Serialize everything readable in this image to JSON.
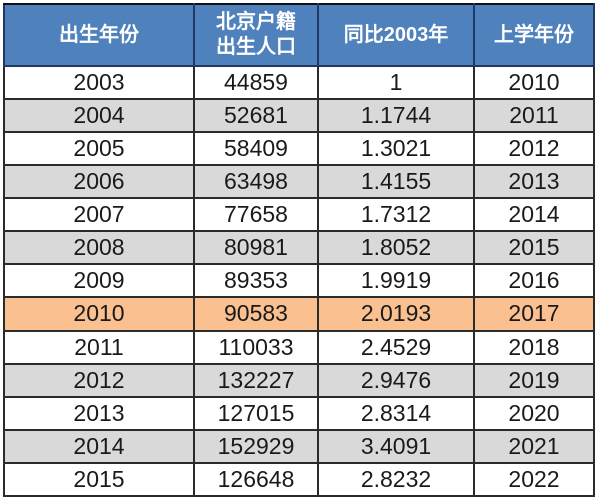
{
  "colors": {
    "header_bg": "#4F81BD",
    "header_text": "#FFFFFF",
    "header_divider": "#1F3864",
    "grid_border": "#2B2B2B",
    "row_white": "#FFFFFF",
    "row_gray": "#D9D9D9",
    "row_highlight": "#FAC090",
    "cell_text": "#1A1A1A"
  },
  "table": {
    "header": {
      "col1": "出生年份",
      "col2_line1": "北京户籍",
      "col2_line2": "出生人口",
      "col3": "同比2003年",
      "col4": "上学年份"
    },
    "rows": [
      {
        "birth_year": "2003",
        "births": "44859",
        "ratio": "1",
        "school_year": "2010",
        "highlight": false
      },
      {
        "birth_year": "2004",
        "births": "52681",
        "ratio": "1.1744",
        "school_year": "2011",
        "highlight": false
      },
      {
        "birth_year": "2005",
        "births": "58409",
        "ratio": "1.3021",
        "school_year": "2012",
        "highlight": false
      },
      {
        "birth_year": "2006",
        "births": "63498",
        "ratio": "1.4155",
        "school_year": "2013",
        "highlight": false
      },
      {
        "birth_year": "2007",
        "births": "77658",
        "ratio": "1.7312",
        "school_year": "2014",
        "highlight": false
      },
      {
        "birth_year": "2008",
        "births": "80981",
        "ratio": "1.8052",
        "school_year": "2015",
        "highlight": false
      },
      {
        "birth_year": "2009",
        "births": "89353",
        "ratio": "1.9919",
        "school_year": "2016",
        "highlight": false
      },
      {
        "birth_year": "2010",
        "births": "90583",
        "ratio": "2.0193",
        "school_year": "2017",
        "highlight": true
      },
      {
        "birth_year": "2011",
        "births": "110033",
        "ratio": "2.4529",
        "school_year": "2018",
        "highlight": false
      },
      {
        "birth_year": "2012",
        "births": "132227",
        "ratio": "2.9476",
        "school_year": "2019",
        "highlight": false
      },
      {
        "birth_year": "2013",
        "births": "127015",
        "ratio": "2.8314",
        "school_year": "2020",
        "highlight": false
      },
      {
        "birth_year": "2014",
        "births": "152929",
        "ratio": "3.4091",
        "school_year": "2021",
        "highlight": false
      },
      {
        "birth_year": "2015",
        "births": "126648",
        "ratio": "2.8232",
        "school_year": "2022",
        "highlight": false
      }
    ]
  },
  "chart_data": {
    "type": "table",
    "columns": [
      "出生年份",
      "北京户籍出生人口",
      "同比2003年",
      "上学年份"
    ],
    "rows": [
      [
        2003,
        44859,
        1,
        2010
      ],
      [
        2004,
        52681,
        1.1744,
        2011
      ],
      [
        2005,
        58409,
        1.3021,
        2012
      ],
      [
        2006,
        63498,
        1.4155,
        2013
      ],
      [
        2007,
        77658,
        1.7312,
        2014
      ],
      [
        2008,
        80981,
        1.8052,
        2015
      ],
      [
        2009,
        89353,
        1.9919,
        2016
      ],
      [
        2010,
        90583,
        2.0193,
        2017
      ],
      [
        2011,
        110033,
        2.4529,
        2018
      ],
      [
        2012,
        132227,
        2.9476,
        2019
      ],
      [
        2013,
        127015,
        2.8314,
        2020
      ],
      [
        2014,
        152929,
        3.4091,
        2021
      ],
      [
        2015,
        126648,
        2.8232,
        2022
      ]
    ],
    "highlight_row_index": 7,
    "highlight_color": "#FAC090",
    "layout_hints": {
      "row_striping": [
        "white",
        "gray"
      ],
      "header_style": "blue background, white bold text",
      "grid": "dark 2px borders"
    }
  }
}
